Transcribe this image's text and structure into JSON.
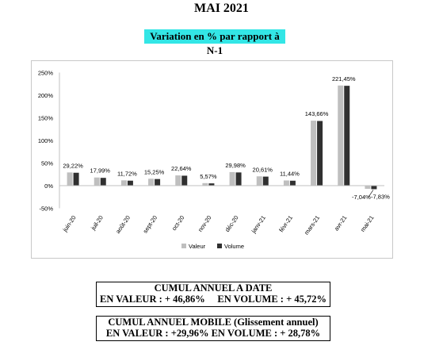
{
  "header": {
    "title": "MAI 2021",
    "subtitle": "Variation en % par rapport à N-1"
  },
  "colors": {
    "valeur": "#bfbfbf",
    "volume": "#303030",
    "subtitle_bg": "#33e6e6"
  },
  "chart_data": {
    "type": "bar",
    "categories": [
      "juin-20",
      "juil-20",
      "août-20",
      "sept-20",
      "oct-20",
      "nov-20",
      "déc-20",
      "janv-21",
      "févr-21",
      "mars-21",
      "avr-21",
      "mai-21"
    ],
    "series": [
      {
        "name": "Valeur",
        "values": [
          29.22,
          17.99,
          11.72,
          15.25,
          22.64,
          5.57,
          29.98,
          20.61,
          11.44,
          143.66,
          221.45,
          -7.04
        ]
      },
      {
        "name": "Volume",
        "values": [
          28.5,
          17.2,
          11.0,
          14.6,
          22.0,
          5.0,
          29.2,
          20.0,
          10.9,
          143.0,
          220.8,
          -7.83
        ]
      }
    ],
    "data_labels": [
      "29,22%",
      "17,99%",
      "11,72%",
      "15,25%",
      "22,64%",
      "5,57%",
      "29,98%",
      "20,61%",
      "11,44%",
      "143,66%",
      "221,45%",
      "-7,04%"
    ],
    "extra_label": "-7,83%",
    "yticks": [
      -50,
      0,
      50,
      100,
      150,
      200,
      250
    ],
    "ytick_labels": [
      "-50%",
      "0%",
      "50%",
      "100%",
      "150%",
      "200%",
      "250%"
    ],
    "ylim": [
      -50,
      250
    ],
    "legend_position": "bottom",
    "grid": false
  },
  "summary": {
    "cumul_title": "CUMUL ANNUEL A DATE",
    "cumul_line": "EN VALEUR : + 46,86%     EN VOLUME : + 45,72%",
    "mobile_title": "CUMUL ANNUEL MOBILE (Glissement annuel)",
    "mobile_line": "EN VALEUR : +29,96% EN VOLUME : + 28,78%"
  }
}
